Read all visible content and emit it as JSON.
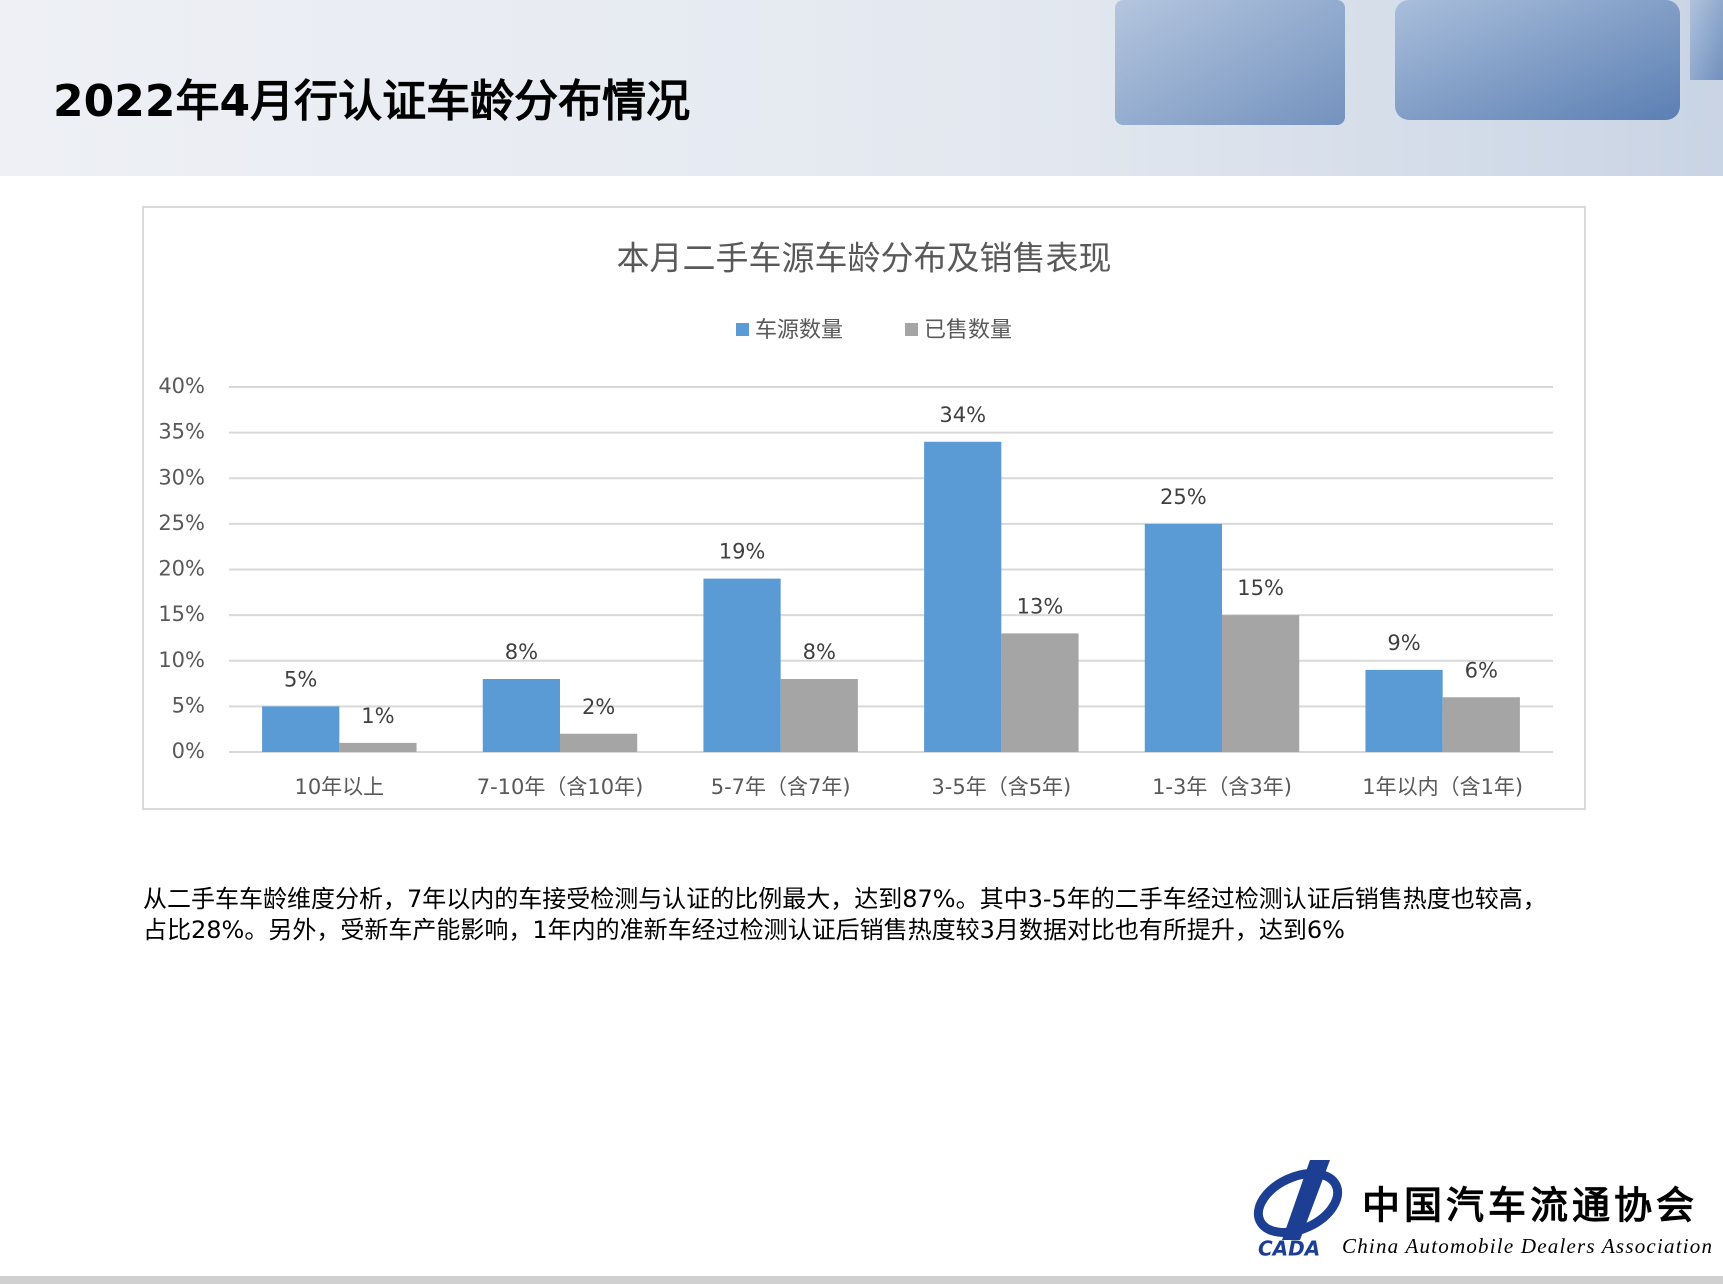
{
  "header": {
    "title": "2022年4月行认证车龄分布情况"
  },
  "chart_data": {
    "type": "bar",
    "title": "本月二手车源车龄分布及销售表现",
    "categories": [
      "10年以上",
      "7-10年（含10年)",
      "5-7年（含7年)",
      "3-5年（含5年)",
      "1-3年（含3年)",
      "1年以内（含1年)"
    ],
    "series": [
      {
        "name": "车源数量",
        "color": "#5b9bd5",
        "values": [
          5,
          8,
          19,
          34,
          25,
          9
        ],
        "value_labels": [
          "5%",
          "8%",
          "19%",
          "34%",
          "25%",
          "9%"
        ]
      },
      {
        "name": "已售数量",
        "color": "#a5a5a5",
        "values": [
          1,
          2,
          8,
          13,
          15,
          6
        ],
        "value_labels": [
          "1%",
          "2%",
          "8%",
          "13%",
          "15%",
          "6%"
        ]
      }
    ],
    "ylim": [
      0,
      40
    ],
    "yticks": [
      {
        "value": 0,
        "label": "0%"
      },
      {
        "value": 5,
        "label": "5%"
      },
      {
        "value": 10,
        "label": "10%"
      },
      {
        "value": 15,
        "label": "15%"
      },
      {
        "value": 20,
        "label": "20%"
      },
      {
        "value": 25,
        "label": "25%"
      },
      {
        "value": 30,
        "label": "30%"
      },
      {
        "value": 35,
        "label": "35%"
      },
      {
        "value": 40,
        "label": "40%"
      }
    ],
    "grid": true,
    "legend": "top"
  },
  "body": {
    "paragraph": "从二手车车龄维度分析，7年以内的车接受检测与认证的比例最大，达到87%。其中3-5年的二手车经过检测认证后销售热度也较高，占比28%。另外，受新车产能影响，1年内的准新车经过检测认证后销售热度较3月数据对比也有所提升，达到6%"
  },
  "logo": {
    "name_cn": "中国汽车流通协会",
    "name_en": "China Automobile Dealers Association",
    "abbr": "CADA"
  }
}
